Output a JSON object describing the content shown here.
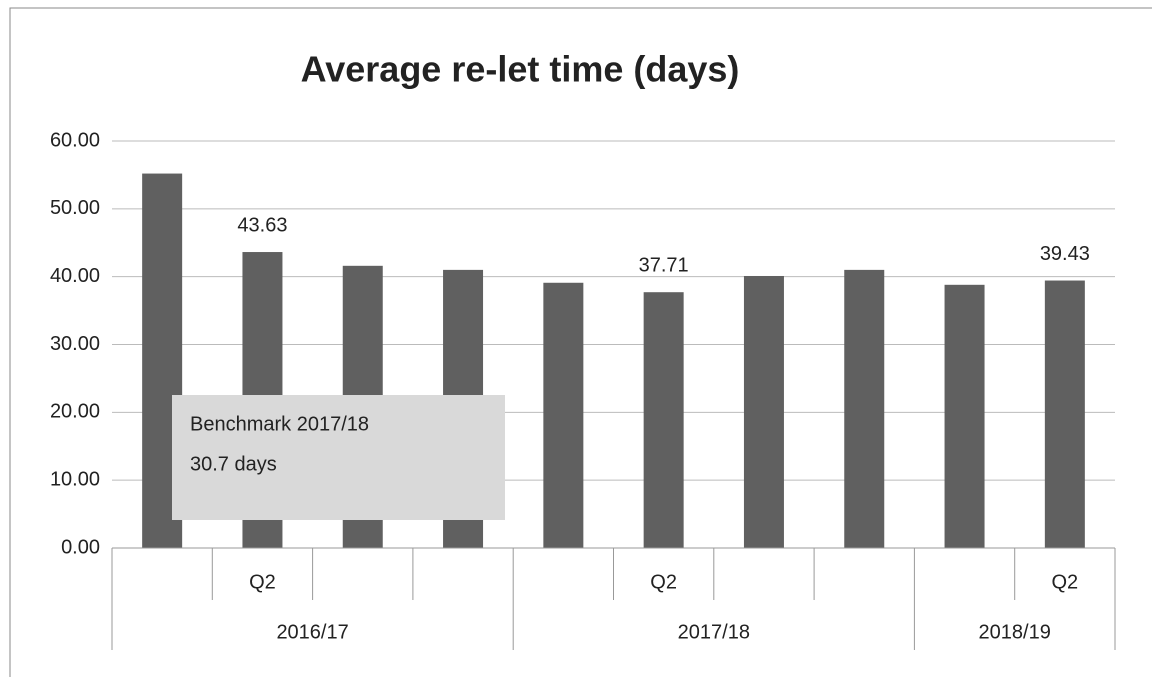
{
  "chart_data": {
    "type": "bar",
    "title": "Average re-let time (days)",
    "categories": [
      null,
      "Q2",
      null,
      null,
      null,
      "Q2",
      null,
      null,
      null,
      "Q2"
    ],
    "groups": [
      {
        "label": "2016/17",
        "count": 4
      },
      {
        "label": "2017/18",
        "count": 4
      },
      {
        "label": "2018/19",
        "count": 2
      }
    ],
    "values": [
      55.2,
      43.63,
      41.6,
      41.0,
      39.1,
      37.71,
      40.1,
      41.0,
      38.8,
      39.43
    ],
    "value_labels": [
      null,
      "43.63",
      null,
      null,
      null,
      "37.71",
      null,
      null,
      null,
      "39.43"
    ],
    "color": "#606060",
    "ylim": [
      0,
      60
    ],
    "yticks": [
      {
        "value": 0,
        "label": "0.00"
      },
      {
        "value": 10,
        "label": "10.00"
      },
      {
        "value": 20,
        "label": "20.00"
      },
      {
        "value": 30,
        "label": "30.00"
      },
      {
        "value": 40,
        "label": "40.00"
      },
      {
        "value": 50,
        "label": "50.00"
      },
      {
        "value": 60,
        "label": "60.00"
      }
    ],
    "grid": true,
    "annotation": {
      "lines": [
        "Benchmark 2017/18",
        "30.7 days"
      ]
    }
  }
}
